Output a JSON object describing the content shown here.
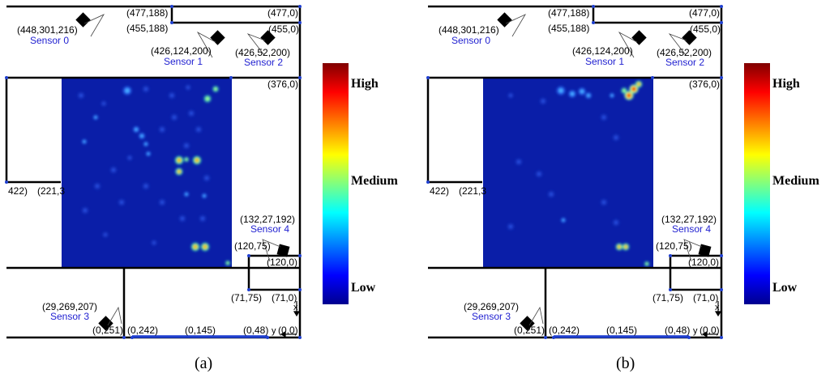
{
  "panels": [
    {
      "label": "(a)",
      "coords": {
        "s0": "(448,301,216)",
        "top_a": "(477,188)",
        "top_b": "(455,188)",
        "top_c": "(477,0)",
        "top_d": "(455,0)",
        "s1": "(426,124,200)",
        "s2": "(426,52,200)",
        "right_376": "(376,0)",
        "left_422": "422)",
        "left_221": "(221,3",
        "s4": "(132,27,192)",
        "c_120_75": "(120,75)",
        "c_120_0": "(120,0)",
        "c_71_75": "(71,75)",
        "c_71_0": "(71,0)",
        "s3": "(29,269,207)",
        "c_0_251": "(0,251)",
        "c_0_242": "(0,242)",
        "c_0_145": "(0,145)",
        "c_0_48": "(0,48)",
        "c_0_0": "(0,0)"
      },
      "sensors": [
        "Sensor 0",
        "Sensor 1",
        "Sensor 2",
        "Sensor 3",
        "Sensor 4"
      ],
      "axis_letters": {
        "x": "x",
        "y": "y"
      },
      "scale": {
        "high": "High",
        "medium": "Medium",
        "low": "Low"
      }
    },
    {
      "label": "(b)",
      "coords": {
        "s0": "(448,301,216)",
        "top_a": "(477,188)",
        "top_b": "(455,188)",
        "top_c": "(477,0)",
        "top_d": "(455,0)",
        "s1": "(426,124,200)",
        "s2": "(426,52,200)",
        "right_376": "(376,0)",
        "left_422": "422)",
        "left_221": "(221,3",
        "s4": "(132,27,192)",
        "c_120_75": "(120,75)",
        "c_120_0": "(120,0)",
        "c_71_75": "(71,75)",
        "c_71_0": "(71,0)",
        "s3": "(29,269,207)",
        "c_0_251": "(0,251)",
        "c_0_242": "(0,242)",
        "c_0_145": "(0,145)",
        "c_0_48": "(0,48)",
        "c_0_0": "(0,0)"
      },
      "sensors": [
        "Sensor 0",
        "Sensor 1",
        "Sensor 2",
        "Sensor 3",
        "Sensor 4"
      ],
      "axis_letters": {
        "x": "x",
        "y": "y"
      },
      "scale": {
        "high": "High",
        "medium": "Medium",
        "low": "Low"
      }
    }
  ],
  "colors": {
    "heatmap_background": "#0a1ea8",
    "highlight_wall": "#1f3fd0",
    "sensor_label": "#1f1fd0",
    "colorbar_stops": [
      "#00008f",
      "#0000ff",
      "#00ffff",
      "#ffff00",
      "#ff0000",
      "#800000"
    ]
  }
}
